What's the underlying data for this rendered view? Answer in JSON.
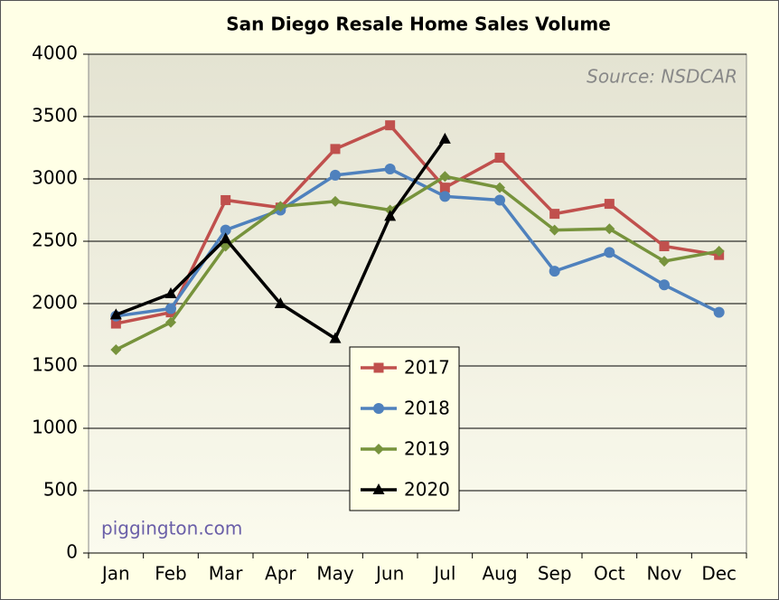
{
  "chart_data": {
    "type": "line",
    "title": "San Diego Resale Home Sales Volume",
    "annotations": [
      "Source:  NSDCAR",
      "piggington.com"
    ],
    "categories": [
      "Jan",
      "Feb",
      "Mar",
      "Apr",
      "May",
      "Jun",
      "Jul",
      "Aug",
      "Sep",
      "Oct",
      "Nov",
      "Dec"
    ],
    "series": [
      {
        "name": "2017",
        "color": "#c0504d",
        "marker": "square",
        "values": [
          1840,
          1930,
          2830,
          2770,
          3240,
          3430,
          2930,
          3170,
          2720,
          2800,
          2460,
          2390
        ]
      },
      {
        "name": "2018",
        "color": "#4f81bd",
        "marker": "circle",
        "values": [
          1900,
          1960,
          2590,
          2750,
          3030,
          3080,
          2860,
          2830,
          2260,
          2410,
          2150,
          1930
        ]
      },
      {
        "name": "2019",
        "color": "#77933c",
        "marker": "diamond",
        "values": [
          1630,
          1850,
          2460,
          2780,
          2820,
          2750,
          3020,
          2930,
          2590,
          2600,
          2340,
          2420
        ]
      },
      {
        "name": "2020",
        "color": "#000000",
        "marker": "triangle",
        "values": [
          1910,
          2080,
          2520,
          2000,
          1720,
          2700,
          3320,
          null,
          null,
          null,
          null,
          null
        ]
      }
    ],
    "ylim": [
      0,
      4000
    ],
    "yticks": [
      0,
      500,
      1000,
      1500,
      2000,
      2500,
      3000,
      3500,
      4000
    ],
    "grid": true,
    "legend": "center"
  }
}
